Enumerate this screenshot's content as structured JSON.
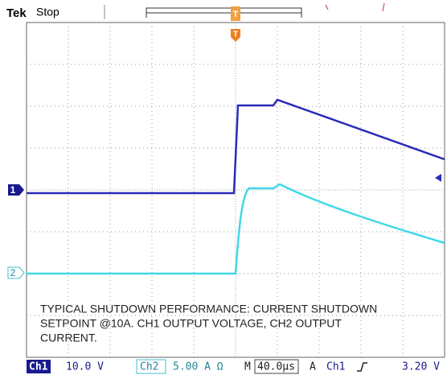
{
  "header": {
    "brand": "Tek",
    "status": "Stop",
    "trigger_marker": "T"
  },
  "channel_markers": [
    "1",
    "2"
  ],
  "annotation": [
    "TYPICAL SHUTDOWN PERFORMANCE: CURRENT SHUTDOWN",
    "SETPOINT @10A. CH1 OUTPUT VOLTAGE, CH2 OUTPUT",
    "CURRENT."
  ],
  "status_bar": {
    "ch1_label": "Ch1",
    "ch1_scale": "10.0 V",
    "ch2_label": "Ch2",
    "ch2_scale": "5.00 A Ω",
    "time_label": "M",
    "time_scale": "40.0µs",
    "trigger_label": "A",
    "trigger_source": "Ch1",
    "trigger_level": "3.20 V"
  }
}
